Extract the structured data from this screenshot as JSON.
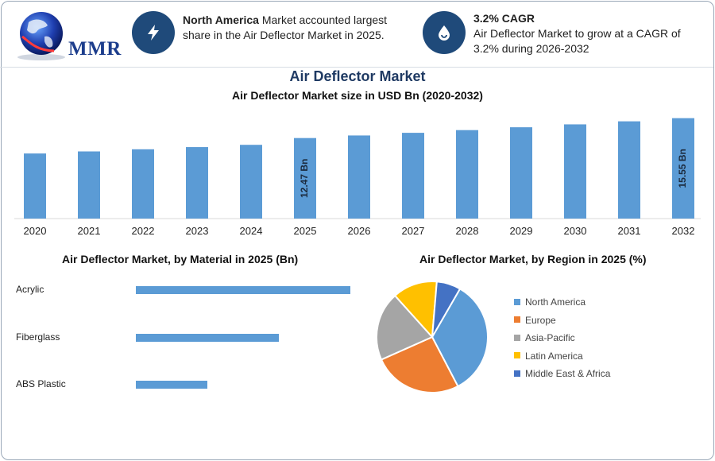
{
  "logo": {
    "text": "MMR"
  },
  "header": {
    "card1": {
      "icon": "lightning-bolt-icon",
      "bold": "North America",
      "text": " Market accounted largest share in the Air Deflector Market in 2025."
    },
    "card2": {
      "icon": "growth-drop-icon",
      "bold": "3.2% CAGR",
      "text": "Air Deflector Market to grow at a CAGR of 3.2% during 2026-2032"
    }
  },
  "title": "Air Deflector Market",
  "colors": {
    "bar": "#5b9bd5",
    "title": "#1f3a63",
    "icon_bg": "#1f4a7a"
  },
  "chart_data": [
    {
      "type": "bar",
      "title": "Air Deflector Market size in USD Bn (2020-2032)",
      "categories": [
        "2020",
        "2021",
        "2022",
        "2023",
        "2024",
        "2025",
        "2026",
        "2027",
        "2028",
        "2029",
        "2030",
        "2031",
        "2032"
      ],
      "values": [
        10.08,
        10.4,
        10.73,
        11.07,
        11.42,
        12.47,
        12.87,
        13.28,
        13.7,
        14.14,
        14.59,
        15.06,
        15.55
      ],
      "data_labels": {
        "2025": "12.47 Bn",
        "2032": "15.55 Bn"
      },
      "ylim": [
        0,
        16
      ],
      "grid": false
    },
    {
      "type": "bar",
      "orientation": "horizontal",
      "title": "Air Deflector Market, by Material in 2025 (Bn)",
      "categories": [
        "Acrylic",
        "Fiberglass",
        "ABS Plastic"
      ],
      "values": [
        6.0,
        4.0,
        2.0
      ]
    },
    {
      "type": "pie",
      "title": "Air Deflector Market, by Region in 2025 (%)",
      "legend_position": "right",
      "categories": [
        "North America",
        "Europe",
        "Asia-Pacific",
        "Latin America",
        "Middle East & Africa"
      ],
      "values": [
        34,
        26,
        20,
        13,
        7
      ],
      "colors": [
        "#5b9bd5",
        "#ed7d31",
        "#a5a5a5",
        "#ffc000",
        "#4472c4"
      ]
    }
  ]
}
